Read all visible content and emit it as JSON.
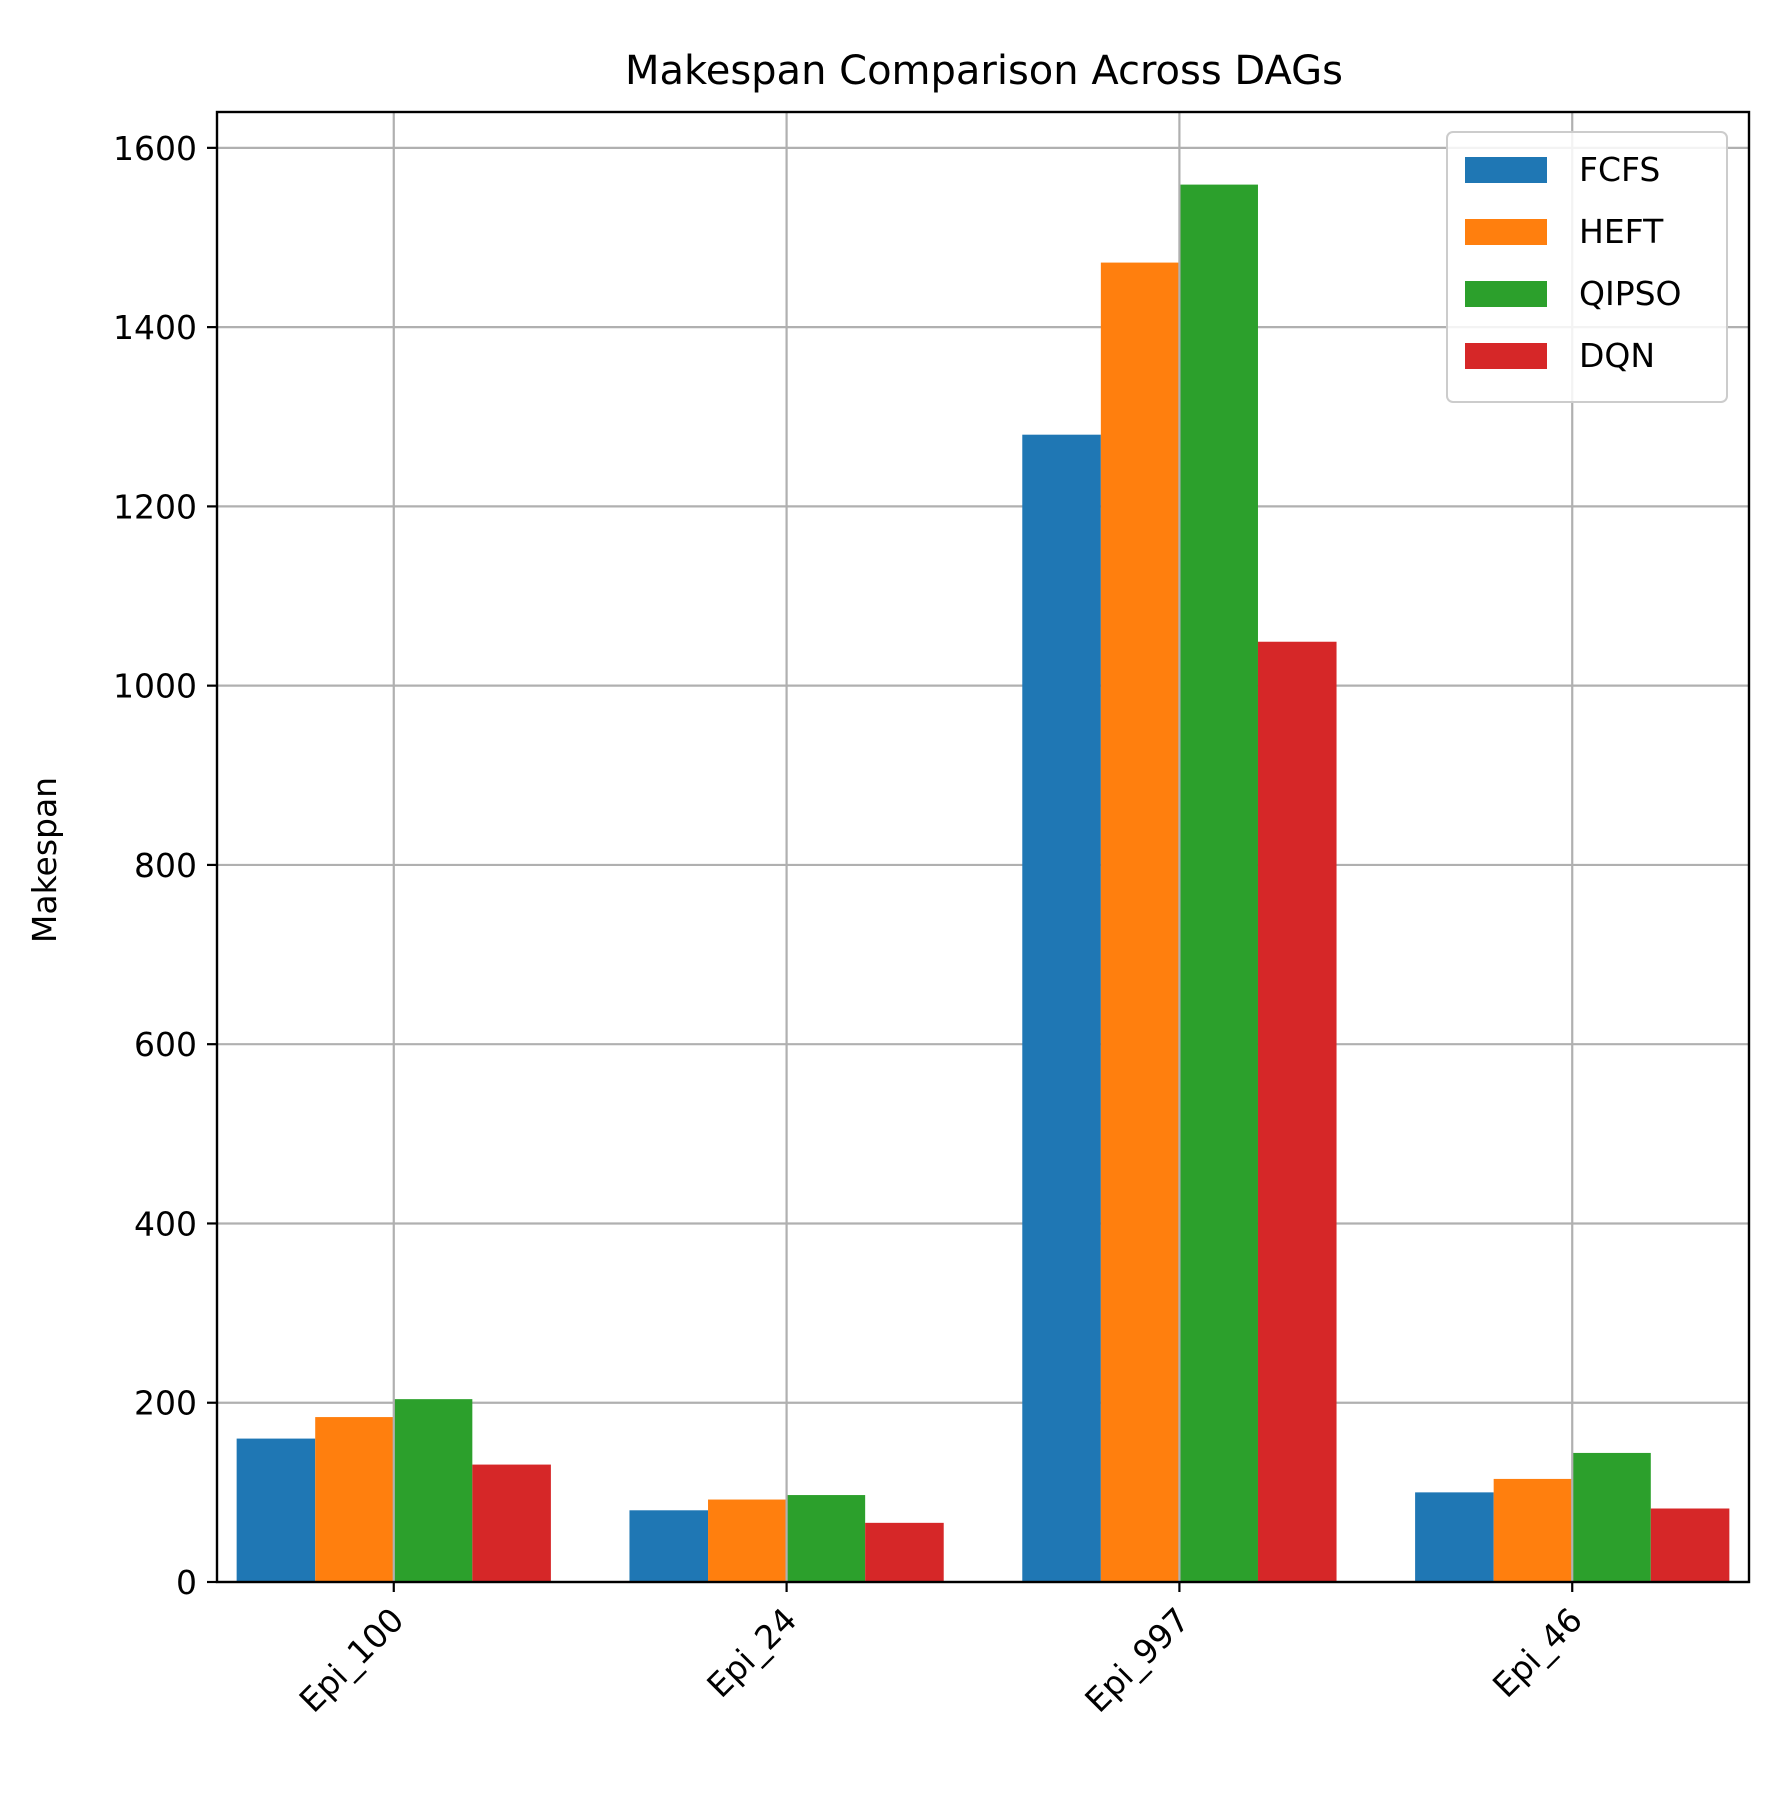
{
  "chart_data": {
    "type": "bar",
    "title": "Makespan Comparison Across DAGs",
    "xlabel": "",
    "ylabel": "Makespan",
    "categories": [
      "Epi_100",
      "Epi_24",
      "Epi_997",
      "Epi_46"
    ],
    "series": [
      {
        "name": "FCFS",
        "color": "#1f77b4",
        "values": [
          160,
          80,
          1280,
          100
        ]
      },
      {
        "name": "HEFT",
        "color": "#ff7f0e",
        "values": [
          184,
          92,
          1472,
          115
        ]
      },
      {
        "name": "QIPSO",
        "color": "#2ca02c",
        "values": [
          204,
          97,
          1559,
          144
        ]
      },
      {
        "name": "DQN",
        "color": "#d62728",
        "values": [
          131,
          66,
          1049,
          82
        ]
      }
    ],
    "ylim": [
      0,
      1640
    ],
    "yticks": [
      0,
      200,
      400,
      600,
      800,
      1000,
      1200,
      1400,
      1600
    ],
    "grid": true,
    "legend_position": "top-right"
  }
}
